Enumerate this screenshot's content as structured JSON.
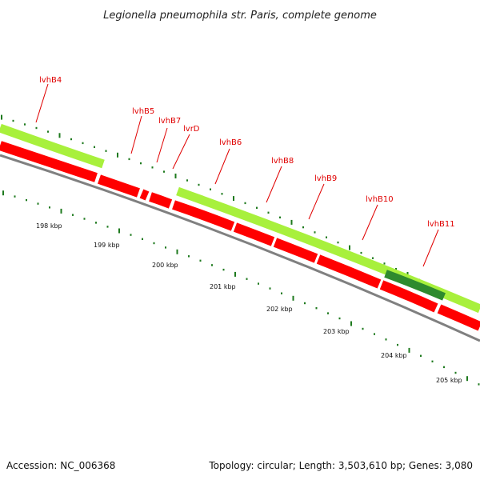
{
  "title": "Legionella pneumophila str. Paris, complete genome",
  "footer": {
    "accession": "Accession: NC_006368",
    "summary": "Topology: circular; Length: 3,503,610 bp; Genes: 3,080"
  },
  "colors": {
    "feature_light": "#a8f03c",
    "feature_dark": "#2e8a2e",
    "gene": "#ff0000",
    "backbone": "#808080",
    "tick": "#1e7a1e",
    "label": "#e00000"
  },
  "gene_labels": [
    "lvhB4",
    "lvhB5",
    "lvhB7",
    "lvrD",
    "lvhB6",
    "lvhB8",
    "lvhB9",
    "lvhB10",
    "lvhB11"
  ],
  "ticks": [
    "198 kbp",
    "199 kbp",
    "200 kbp",
    "201 kbp",
    "202 kbp",
    "203 kbp",
    "204 kbp",
    "205 kbp"
  ]
}
